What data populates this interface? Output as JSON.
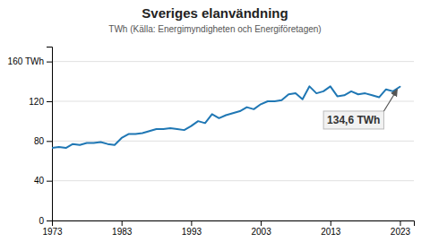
{
  "chart_data": {
    "type": "line",
    "title": "Sveriges elanvändning",
    "subtitle": "TWh (Källa: Energimyndigheten och Energiföretagen)",
    "x": [
      1973,
      1974,
      1975,
      1976,
      1977,
      1978,
      1979,
      1980,
      1981,
      1982,
      1983,
      1984,
      1985,
      1986,
      1987,
      1988,
      1989,
      1990,
      1991,
      1992,
      1993,
      1994,
      1995,
      1996,
      1997,
      1998,
      1999,
      2000,
      2001,
      2002,
      2003,
      2004,
      2005,
      2006,
      2007,
      2008,
      2009,
      2010,
      2011,
      2012,
      2013,
      2014,
      2015,
      2016,
      2017,
      2018,
      2019,
      2020,
      2021,
      2022,
      2023
    ],
    "values": [
      73,
      74,
      73,
      77,
      76,
      78,
      78,
      79,
      77,
      76,
      83,
      87,
      87,
      88,
      90,
      92,
      92,
      93,
      92,
      91,
      95,
      100,
      98,
      107,
      103,
      106,
      108,
      110,
      114,
      112,
      117,
      120,
      120,
      121,
      127,
      128,
      122,
      135,
      128,
      130,
      135,
      125,
      126,
      130,
      127,
      128,
      126,
      124,
      132,
      130,
      134.6
    ],
    "xlim": [
      1973,
      2025
    ],
    "xticks": [
      1973,
      1983,
      1993,
      2003,
      2013,
      2023
    ],
    "ylim": [
      0,
      175
    ],
    "yticks": [
      0,
      40,
      80,
      120,
      {
        "value": 160,
        "label": "160 TWh"
      }
    ],
    "grid": true,
    "annotation": "134,6 TWh"
  }
}
